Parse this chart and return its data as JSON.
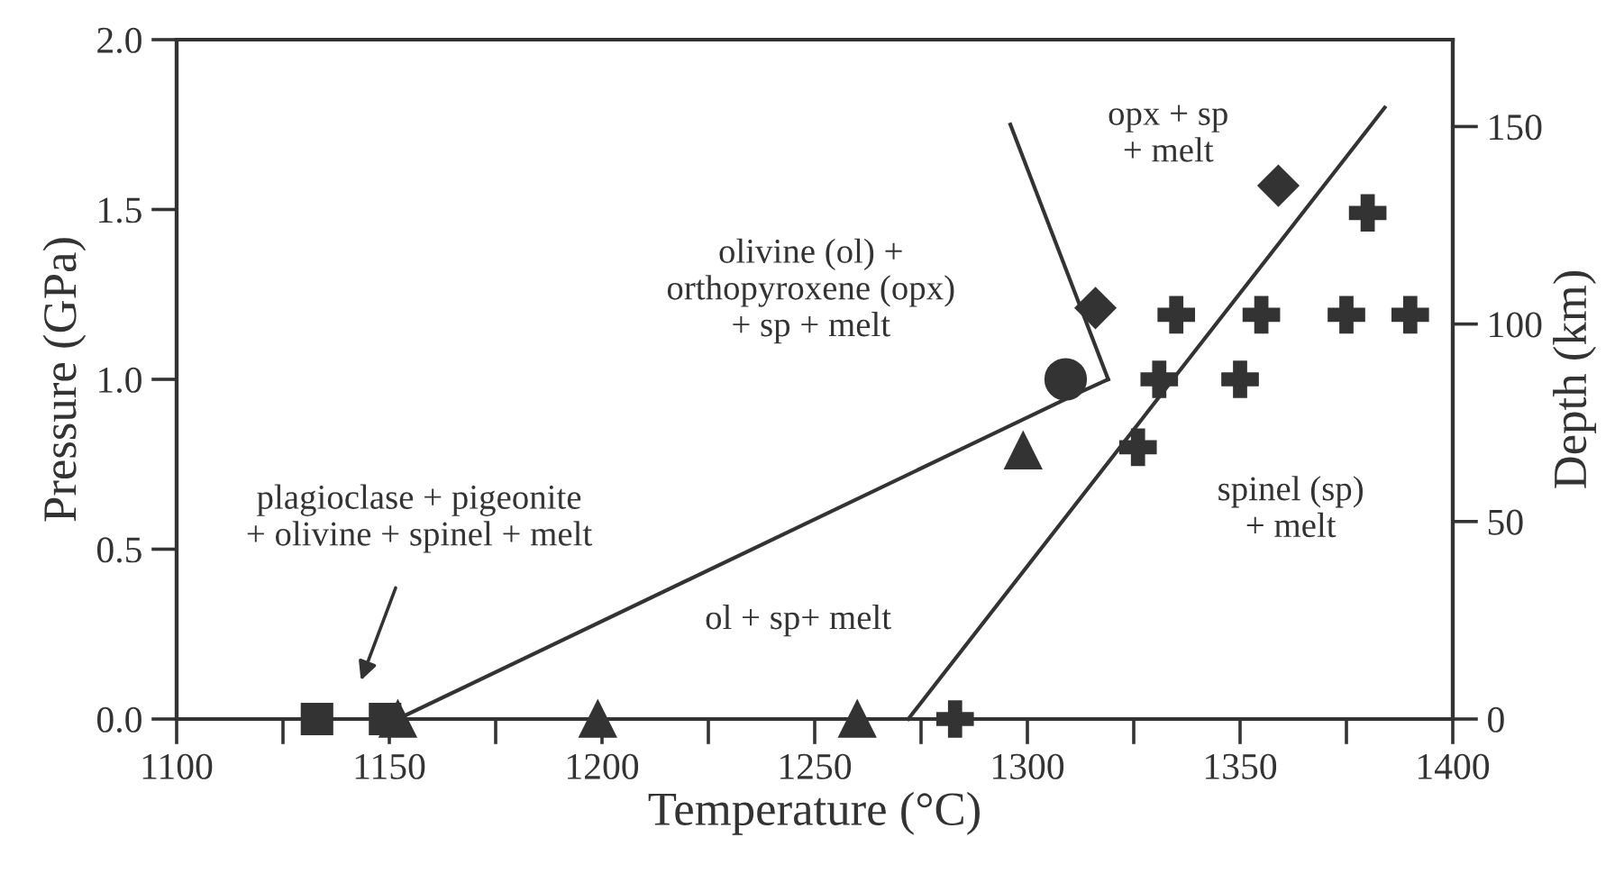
{
  "chart_data": {
    "type": "scatter",
    "xlabel": "Temperature (°C)",
    "ylabel": "Pressure (GPa)",
    "y2label": "Depth (km)",
    "xlim": [
      1100,
      1400
    ],
    "xticks": [
      1100,
      {
        "value": 1125,
        "label": null
      },
      1150,
      {
        "value": 1175,
        "label": null
      },
      1200,
      {
        "value": 1225,
        "label": null
      },
      1250,
      {
        "value": 1275,
        "label": null
      },
      1300,
      {
        "value": 1325,
        "label": null
      },
      1350,
      {
        "value": 1375,
        "label": null
      },
      1400
    ],
    "ylim": [
      0,
      2.0
    ],
    "yticks": [
      {
        "value": 0,
        "label": "0.0"
      },
      0.5,
      {
        "value": 1,
        "label": "1.0"
      },
      1.5,
      {
        "value": 2,
        "label": "2.0"
      }
    ],
    "y2lim": [
      0,
      172
    ],
    "y2ticks": [
      0,
      50,
      100,
      150
    ],
    "grid": false,
    "legend": false,
    "series": [
      {
        "type": "line",
        "color": "#333333",
        "marker": "none",
        "line_style": "solid",
        "x": [
          1152,
          1312,
          1319
        ],
        "values": [
          0,
          0.96,
          1.0
        ]
      },
      {
        "type": "line",
        "color": "#333333",
        "marker": "none",
        "line_style": "solid",
        "x": [
          1272,
          1384
        ],
        "values": [
          0,
          1.8
        ]
      },
      {
        "type": "line",
        "color": "#333333",
        "marker": "none",
        "line_style": "solid",
        "x": [
          1296,
          1319
        ],
        "values": [
          1.75,
          1.0
        ]
      },
      {
        "color": "#333333",
        "marker": "square",
        "x": [
          1133,
          1149
        ],
        "values": [
          0,
          0
        ]
      },
      {
        "color": "#333333",
        "marker": "triangle",
        "x": [
          1152,
          1199,
          1260,
          1299
        ],
        "values": [
          0,
          0,
          0,
          0.79
        ]
      },
      {
        "color": "#333333",
        "marker": "circle",
        "x": [
          1309
        ],
        "values": [
          1.0
        ]
      },
      {
        "color": "#333333",
        "marker": "diamond",
        "x": [
          1316,
          1359
        ],
        "values": [
          1.21,
          1.57
        ]
      },
      {
        "color": "#333333",
        "marker": "cross",
        "x": [
          1283,
          1326,
          1331,
          1335,
          1350,
          1355,
          1375,
          1380,
          1390
        ],
        "values": [
          0,
          0.8,
          1.0,
          1.19,
          1.0,
          1.19,
          1.19,
          1.49,
          1.19
        ]
      }
    ],
    "annotations": [
      "plagioclase + pigeonite\n+ olivine + spinel + melt",
      "olivine (ol) +\northopyroxene (opx)\n+ sp + melt",
      "opx + sp\n+ melt",
      "spinel (sp)\n+ melt",
      "ol + sp+ melt"
    ]
  }
}
